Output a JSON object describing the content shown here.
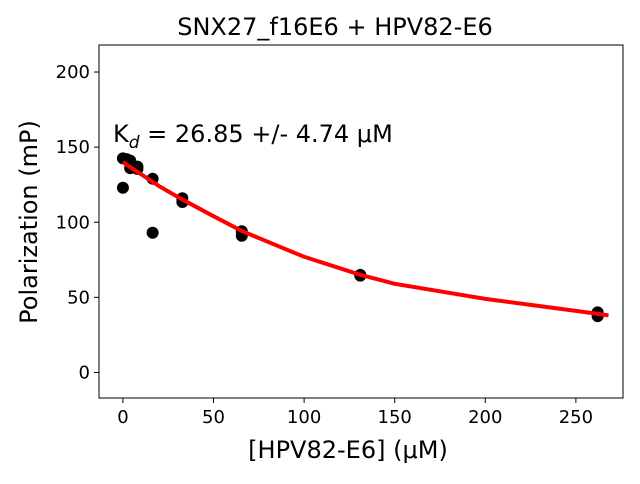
{
  "chart_data": {
    "type": "scatter",
    "title": "SNX27_f16E6 + HPV82-E6",
    "xlabel": "[HPV82-E6] (μM)",
    "ylabel": "Polarization (mP)",
    "xlim": [
      -13.2,
      276
    ],
    "ylim": [
      -17,
      218
    ],
    "xticks": [
      0,
      50,
      100,
      150,
      200,
      250
    ],
    "yticks": [
      0,
      50,
      100,
      150,
      200
    ],
    "grid": false,
    "annotation": {
      "prefix": "K",
      "subscript": "d",
      "text": " = 26.85 +/- 4.74 μM"
    },
    "points": {
      "color": "#000000",
      "x": [
        0,
        0,
        2,
        4,
        4,
        8,
        8,
        16.4,
        16.4,
        32.8,
        32.8,
        65.6,
        65.6,
        131,
        131,
        262,
        262
      ],
      "y": [
        142.5,
        123,
        142,
        141,
        136,
        137,
        135.5,
        129,
        93,
        116,
        113.5,
        94,
        91,
        65,
        64.5,
        40,
        37.5
      ]
    },
    "fit": {
      "color": "#ff0000",
      "x": [
        0,
        10,
        20,
        33,
        50,
        66,
        80,
        100,
        131,
        150,
        175,
        200,
        225,
        250,
        268
      ],
      "y": [
        140,
        132,
        124,
        115,
        104,
        94,
        87,
        77,
        65,
        59,
        54,
        49,
        45,
        41,
        38
      ]
    }
  }
}
